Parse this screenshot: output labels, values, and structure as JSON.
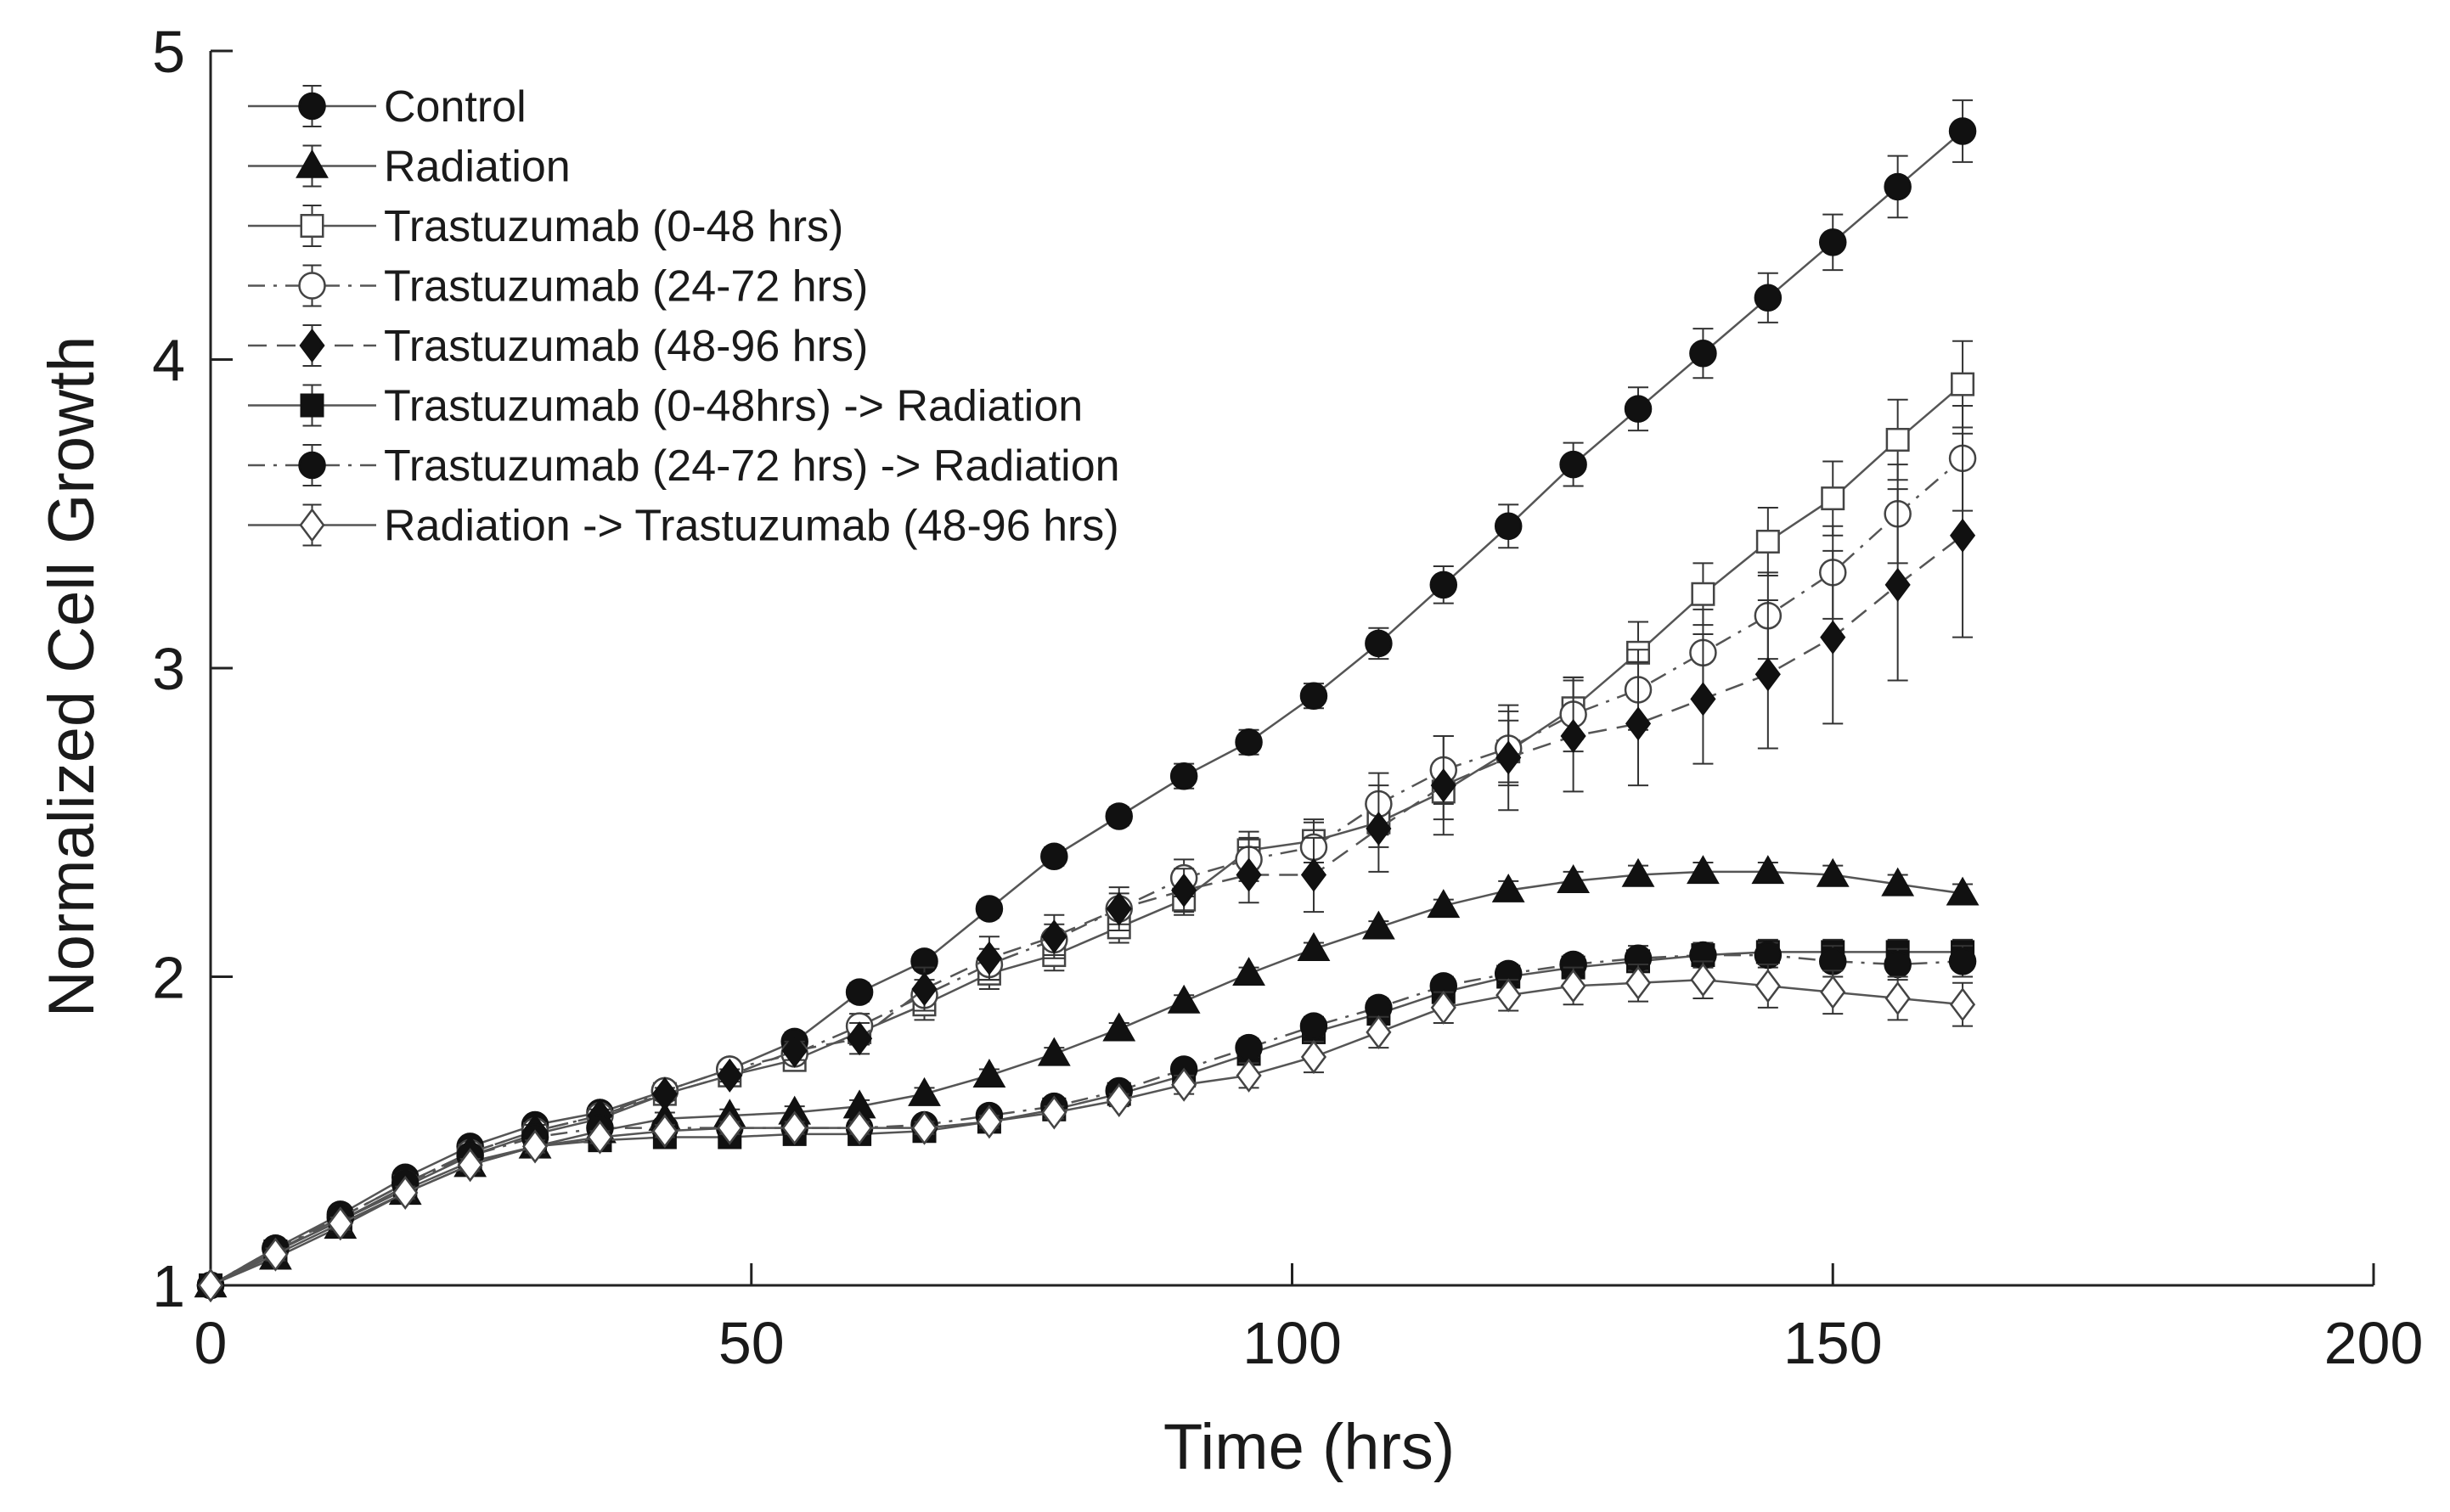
{
  "chart_data": {
    "type": "line",
    "title": "",
    "xlabel": "Time (hrs)",
    "ylabel": "Normalized Cell Growth",
    "xlim": [
      0,
      200
    ],
    "ylim": [
      1,
      5
    ],
    "xticks": [
      0,
      50,
      100,
      150,
      200
    ],
    "yticks": [
      1,
      2,
      3,
      4,
      5
    ],
    "xtick_labels": [
      "0",
      "50",
      "100",
      "150",
      "200"
    ],
    "ytick_labels": [
      "1",
      "2",
      "3",
      "4",
      "5"
    ],
    "grid": false,
    "legend_position": "top-left",
    "x": [
      0,
      6,
      12,
      18,
      24,
      30,
      36,
      42,
      48,
      54,
      60,
      66,
      72,
      78,
      84,
      90,
      96,
      102,
      108,
      114,
      120,
      126,
      132,
      138,
      144,
      150,
      156,
      162
    ],
    "series": [
      {
        "name": "Control",
        "marker": "circle-filled",
        "dash": "solid",
        "values": [
          1.0,
          1.12,
          1.23,
          1.35,
          1.45,
          1.52,
          1.56,
          1.63,
          1.7,
          1.79,
          1.95,
          2.05,
          2.22,
          2.39,
          2.52,
          2.65,
          2.76,
          2.91,
          3.08,
          3.27,
          3.46,
          3.66,
          3.84,
          4.02,
          4.2,
          4.38,
          4.56,
          4.74
        ],
        "errors": [
          0,
          0.02,
          0.02,
          0.02,
          0.02,
          0.02,
          0.02,
          0.02,
          0.02,
          0.03,
          0.03,
          0.03,
          0.03,
          0.03,
          0.03,
          0.04,
          0.04,
          0.04,
          0.05,
          0.06,
          0.07,
          0.07,
          0.07,
          0.08,
          0.08,
          0.09,
          0.1,
          0.1
        ]
      },
      {
        "name": "Radiation",
        "marker": "triangle-filled",
        "dash": "solid",
        "values": [
          1.0,
          1.09,
          1.19,
          1.3,
          1.39,
          1.45,
          1.5,
          1.54,
          1.55,
          1.56,
          1.58,
          1.62,
          1.68,
          1.75,
          1.83,
          1.92,
          2.01,
          2.09,
          2.16,
          2.23,
          2.28,
          2.31,
          2.33,
          2.34,
          2.34,
          2.33,
          2.3,
          2.27
        ],
        "errors": [
          0,
          0.02,
          0.02,
          0.02,
          0.02,
          0.02,
          0.02,
          0.02,
          0.02,
          0.02,
          0.02,
          0.02,
          0.02,
          0.02,
          0.02,
          0.02,
          0.02,
          0.02,
          0.02,
          0.02,
          0.03,
          0.03,
          0.03,
          0.03,
          0.03,
          0.03,
          0.03,
          0.03
        ]
      },
      {
        "name": "Trastuzumab (0-48 hrs)",
        "marker": "square-open",
        "dash": "solid",
        "values": [
          1.0,
          1.11,
          1.21,
          1.32,
          1.42,
          1.49,
          1.54,
          1.62,
          1.68,
          1.73,
          1.82,
          1.91,
          2.01,
          2.07,
          2.16,
          2.25,
          2.41,
          2.44,
          2.5,
          2.6,
          2.73,
          2.87,
          3.05,
          3.24,
          3.41,
          3.55,
          3.74,
          3.92
        ],
        "errors": [
          0,
          0.02,
          0.02,
          0.02,
          0.02,
          0.02,
          0.02,
          0.02,
          0.02,
          0.03,
          0.04,
          0.05,
          0.05,
          0.05,
          0.05,
          0.05,
          0.06,
          0.07,
          0.08,
          0.09,
          0.1,
          0.1,
          0.1,
          0.1,
          0.11,
          0.12,
          0.13,
          0.14
        ]
      },
      {
        "name": "Trastuzumab (24-72 hrs)",
        "marker": "circle-open",
        "dash": "dashdot",
        "values": [
          1.0,
          1.12,
          1.22,
          1.33,
          1.43,
          1.5,
          1.55,
          1.63,
          1.7,
          1.75,
          1.84,
          1.94,
          2.04,
          2.12,
          2.22,
          2.32,
          2.38,
          2.42,
          2.56,
          2.67,
          2.74,
          2.85,
          2.93,
          3.05,
          3.17,
          3.31,
          3.5,
          3.68
        ],
        "errors": [
          0,
          0.02,
          0.02,
          0.02,
          0.02,
          0.02,
          0.02,
          0.02,
          0.02,
          0.03,
          0.04,
          0.05,
          0.05,
          0.05,
          0.05,
          0.06,
          0.07,
          0.08,
          0.1,
          0.11,
          0.12,
          0.12,
          0.13,
          0.14,
          0.14,
          0.15,
          0.16,
          0.17
        ]
      },
      {
        "name": "Trastuzumab (48-96 hrs)",
        "marker": "diamond-filled",
        "dash": "dashed",
        "values": [
          1.0,
          1.11,
          1.22,
          1.33,
          1.43,
          1.5,
          1.55,
          1.62,
          1.68,
          1.76,
          1.8,
          1.96,
          2.06,
          2.13,
          2.22,
          2.28,
          2.33,
          2.33,
          2.48,
          2.62,
          2.71,
          2.78,
          2.82,
          2.9,
          2.98,
          3.1,
          3.27,
          3.43
        ],
        "errors": [
          0,
          0.02,
          0.02,
          0.02,
          0.02,
          0.02,
          0.02,
          0.02,
          0.02,
          0.03,
          0.05,
          0.07,
          0.07,
          0.07,
          0.07,
          0.07,
          0.09,
          0.12,
          0.14,
          0.16,
          0.17,
          0.18,
          0.2,
          0.21,
          0.24,
          0.28,
          0.31,
          0.33
        ]
      },
      {
        "name": "Trastuzumab (0-48hrs) -> Radiation",
        "marker": "square-filled",
        "dash": "solid",
        "values": [
          1.0,
          1.11,
          1.21,
          1.31,
          1.4,
          1.45,
          1.47,
          1.48,
          1.48,
          1.49,
          1.49,
          1.5,
          1.53,
          1.57,
          1.62,
          1.68,
          1.75,
          1.82,
          1.88,
          1.95,
          2.0,
          2.03,
          2.05,
          2.07,
          2.08,
          2.08,
          2.08,
          2.08
        ],
        "errors": [
          0,
          0.02,
          0.02,
          0.02,
          0.02,
          0.02,
          0.02,
          0.02,
          0.02,
          0.02,
          0.02,
          0.02,
          0.02,
          0.02,
          0.02,
          0.02,
          0.02,
          0.03,
          0.03,
          0.03,
          0.03,
          0.03,
          0.03,
          0.04,
          0.04,
          0.04,
          0.04,
          0.04
        ]
      },
      {
        "name": "Trastuzumab (24-72 hrs) -> Radiation",
        "marker": "circle-filled",
        "dash": "dashdot",
        "values": [
          1.0,
          1.12,
          1.22,
          1.33,
          1.42,
          1.48,
          1.51,
          1.51,
          1.51,
          1.51,
          1.51,
          1.52,
          1.55,
          1.58,
          1.63,
          1.7,
          1.77,
          1.84,
          1.9,
          1.97,
          2.01,
          2.04,
          2.06,
          2.07,
          2.07,
          2.05,
          2.04,
          2.05
        ],
        "errors": [
          0,
          0.02,
          0.02,
          0.02,
          0.02,
          0.02,
          0.02,
          0.02,
          0.02,
          0.02,
          0.02,
          0.02,
          0.02,
          0.02,
          0.02,
          0.02,
          0.03,
          0.03,
          0.03,
          0.03,
          0.03,
          0.03,
          0.04,
          0.04,
          0.04,
          0.05,
          0.05,
          0.05
        ]
      },
      {
        "name": "Radiation -> Trastuzumab (48-96 hrs)",
        "marker": "diamond-open",
        "dash": "solid",
        "values": [
          1.0,
          1.1,
          1.2,
          1.3,
          1.39,
          1.45,
          1.48,
          1.5,
          1.51,
          1.51,
          1.51,
          1.51,
          1.53,
          1.56,
          1.6,
          1.65,
          1.68,
          1.74,
          1.82,
          1.9,
          1.94,
          1.97,
          1.98,
          1.99,
          1.97,
          1.95,
          1.93,
          1.91
        ],
        "errors": [
          0,
          0.02,
          0.02,
          0.02,
          0.02,
          0.02,
          0.02,
          0.02,
          0.02,
          0.02,
          0.02,
          0.02,
          0.02,
          0.02,
          0.02,
          0.03,
          0.04,
          0.05,
          0.05,
          0.05,
          0.05,
          0.06,
          0.06,
          0.06,
          0.07,
          0.07,
          0.07,
          0.07
        ]
      }
    ]
  }
}
